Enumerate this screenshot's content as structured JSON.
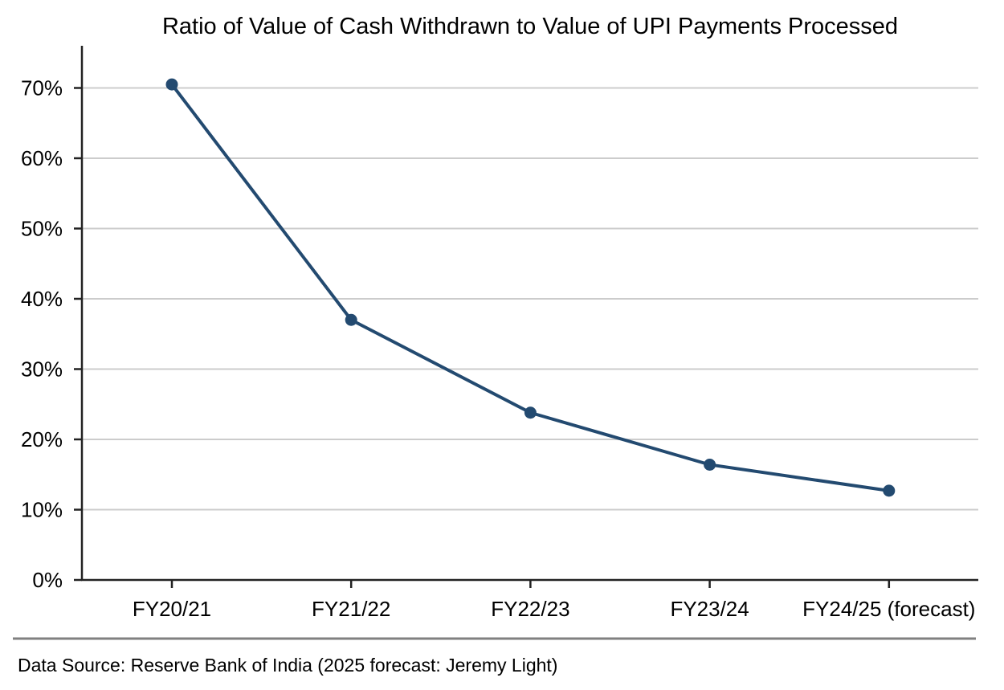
{
  "chart_data": {
    "type": "line",
    "title": "Ratio of Value of Cash Withdrawn to Value of UPI Payments Processed",
    "xlabel": "",
    "ylabel": "",
    "categories": [
      "FY20/21",
      "FY21/22",
      "FY22/23",
      "FY23/24",
      "FY24/25 (forecast)"
    ],
    "series": [
      {
        "values": [
          70.5,
          37.0,
          23.8,
          16.4,
          12.7
        ]
      }
    ],
    "ylim": [
      0,
      76
    ],
    "yticks": [
      0,
      10,
      20,
      30,
      40,
      50,
      60,
      70
    ],
    "ytick_labels": [
      "0%",
      "10%",
      "20%",
      "30%",
      "40%",
      "50%",
      "60%",
      "70%"
    ],
    "grid": "horizontal",
    "colors": {
      "line": "#234a70",
      "grid": "#cccccc",
      "axis": "#222222",
      "source_rule": "#808080"
    }
  },
  "source_note": "Data Source: Reserve Bank of India (2025 forecast: Jeremy Light)"
}
